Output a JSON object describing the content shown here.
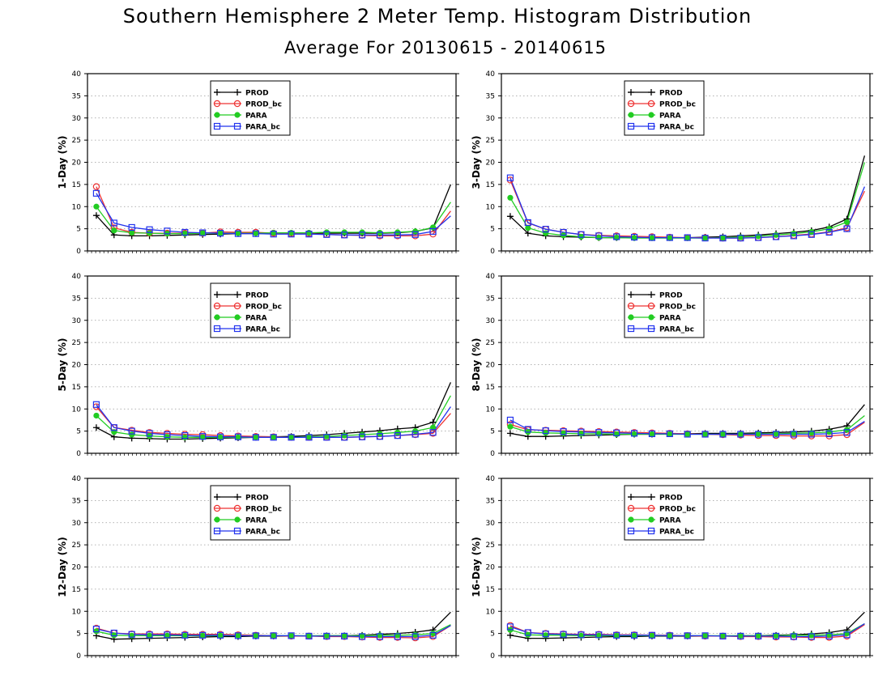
{
  "title": "Southern Hemisphere 2 Meter Temp. Histogram Distribution",
  "subtitle": "Average For 20130615 - 20140615",
  "colors": {
    "PROD": "#000000",
    "PROD_bc": "#ee3333",
    "PARA": "#22cc22",
    "PARA_bc": "#2233ee"
  },
  "chart_data": [
    {
      "type": "line",
      "ylabel": "1-Day (%)",
      "ylim": [
        0,
        40
      ],
      "yticks": [
        0,
        5,
        10,
        15,
        20,
        25,
        30,
        35,
        40
      ],
      "x": [
        1,
        2,
        3,
        4,
        5,
        6,
        7,
        8,
        9,
        10,
        11,
        12,
        13,
        14,
        15,
        16,
        17,
        18,
        19,
        20,
        21
      ],
      "grid": true,
      "legend": "top-left",
      "series": [
        {
          "name": "PROD",
          "marker": "plus",
          "values": [
            8,
            3.6,
            3.4,
            3.4,
            3.5,
            3.6,
            3.7,
            3.8,
            3.9,
            3.9,
            4.0,
            4.0,
            4.0,
            4.0,
            4.0,
            4.0,
            4.0,
            4.1,
            4.4,
            5.2,
            15
          ]
        },
        {
          "name": "PROD_bc",
          "marker": "circle",
          "values": [
            14.5,
            5.2,
            4.2,
            4.0,
            4.0,
            4.0,
            4.0,
            4.3,
            4.2,
            4.2,
            4.0,
            3.9,
            3.9,
            3.7,
            3.6,
            3.5,
            3.4,
            3.4,
            3.4,
            3.8,
            9
          ]
        },
        {
          "name": "PARA",
          "marker": "dot",
          "values": [
            10,
            4.6,
            4.1,
            4.0,
            3.9,
            3.9,
            4.0,
            4.0,
            4.0,
            4.0,
            4.1,
            4.1,
            4.1,
            4.2,
            4.2,
            4.2,
            4.1,
            4.2,
            4.4,
            5.3,
            11
          ]
        },
        {
          "name": "PARA_bc",
          "marker": "square",
          "values": [
            13,
            6.3,
            5.3,
            4.8,
            4.5,
            4.2,
            4.1,
            4.0,
            3.9,
            3.9,
            3.8,
            3.8,
            3.8,
            3.7,
            3.6,
            3.6,
            3.6,
            3.6,
            3.7,
            4.4,
            7.9
          ]
        }
      ]
    },
    {
      "type": "line",
      "ylabel": "3-Day (%)",
      "ylim": [
        0,
        40
      ],
      "yticks": [
        0,
        5,
        10,
        15,
        20,
        25,
        30,
        35,
        40
      ],
      "x": [
        1,
        2,
        3,
        4,
        5,
        6,
        7,
        8,
        9,
        10,
        11,
        12,
        13,
        14,
        15,
        16,
        17,
        18,
        19,
        20,
        21
      ],
      "grid": true,
      "legend": "top-left",
      "series": [
        {
          "name": "PROD",
          "marker": "plus",
          "values": [
            7.8,
            4.0,
            3.4,
            3.2,
            3.1,
            3.0,
            3.0,
            3.0,
            3.0,
            3.0,
            3.0,
            3.1,
            3.2,
            3.4,
            3.6,
            3.9,
            4.2,
            4.6,
            5.4,
            7.2,
            21.5
          ]
        },
        {
          "name": "PROD_bc",
          "marker": "circle",
          "values": [
            16,
            6.3,
            4.9,
            4.2,
            3.7,
            3.5,
            3.4,
            3.3,
            3.2,
            3.1,
            3.0,
            3.0,
            2.9,
            2.9,
            3.0,
            3.2,
            3.5,
            3.8,
            4.3,
            5.2,
            13.5
          ]
        },
        {
          "name": "PARA",
          "marker": "dot",
          "values": [
            12,
            5.2,
            4.0,
            3.5,
            3.2,
            3.0,
            3.0,
            2.9,
            2.9,
            2.9,
            2.9,
            2.9,
            3.0,
            3.1,
            3.3,
            3.6,
            3.9,
            4.3,
            5.0,
            6.5,
            20
          ]
        },
        {
          "name": "PARA_bc",
          "marker": "square",
          "values": [
            16.5,
            6.4,
            4.9,
            4.2,
            3.7,
            3.4,
            3.2,
            3.1,
            3.0,
            3.0,
            3.0,
            2.9,
            2.9,
            2.9,
            3.0,
            3.2,
            3.4,
            3.7,
            4.2,
            5.0,
            14.5
          ]
        }
      ]
    },
    {
      "type": "line",
      "ylabel": "5-Day (%)",
      "ylim": [
        0,
        40
      ],
      "yticks": [
        0,
        5,
        10,
        15,
        20,
        25,
        30,
        35,
        40
      ],
      "x": [
        1,
        2,
        3,
        4,
        5,
        6,
        7,
        8,
        9,
        10,
        11,
        12,
        13,
        14,
        15,
        16,
        17,
        18,
        19,
        20,
        21
      ],
      "grid": true,
      "legend": "top-left",
      "series": [
        {
          "name": "PROD",
          "marker": "plus",
          "values": [
            5.8,
            3.7,
            3.4,
            3.3,
            3.2,
            3.2,
            3.3,
            3.4,
            3.5,
            3.6,
            3.7,
            3.8,
            4.0,
            4.2,
            4.5,
            4.8,
            5.1,
            5.5,
            5.8,
            7.0,
            16
          ]
        },
        {
          "name": "PROD_bc",
          "marker": "circle",
          "values": [
            10.5,
            5.8,
            5.2,
            4.7,
            4.5,
            4.3,
            4.2,
            4.0,
            3.9,
            3.8,
            3.7,
            3.6,
            3.6,
            3.6,
            3.6,
            3.7,
            3.8,
            4.0,
            4.2,
            4.5,
            9
          ]
        },
        {
          "name": "PARA",
          "marker": "dot",
          "values": [
            8.5,
            4.8,
            4.2,
            3.9,
            3.7,
            3.6,
            3.6,
            3.6,
            3.6,
            3.6,
            3.6,
            3.6,
            3.7,
            3.8,
            4.0,
            4.2,
            4.4,
            4.7,
            5.0,
            5.8,
            13
          ]
        },
        {
          "name": "PARA_bc",
          "marker": "square",
          "values": [
            11,
            5.8,
            5.0,
            4.5,
            4.2,
            4.0,
            3.8,
            3.7,
            3.7,
            3.6,
            3.6,
            3.6,
            3.6,
            3.6,
            3.6,
            3.7,
            3.8,
            4.0,
            4.3,
            4.7,
            10.5
          ]
        }
      ]
    },
    {
      "type": "line",
      "ylabel": "8-Day (%)",
      "ylim": [
        0,
        40
      ],
      "yticks": [
        0,
        5,
        10,
        15,
        20,
        25,
        30,
        35,
        40
      ],
      "x": [
        1,
        2,
        3,
        4,
        5,
        6,
        7,
        8,
        9,
        10,
        11,
        12,
        13,
        14,
        15,
        16,
        17,
        18,
        19,
        20,
        21
      ],
      "grid": true,
      "legend": "top-left",
      "series": [
        {
          "name": "PROD",
          "marker": "plus",
          "values": [
            4.5,
            3.8,
            3.8,
            3.9,
            4.0,
            4.1,
            4.2,
            4.3,
            4.3,
            4.4,
            4.4,
            4.5,
            4.5,
            4.5,
            4.6,
            4.7,
            4.8,
            5.0,
            5.4,
            6.2,
            11
          ]
        },
        {
          "name": "PROD_bc",
          "marker": "circle",
          "values": [
            6.5,
            5.3,
            5.2,
            5.1,
            5.0,
            4.9,
            4.8,
            4.7,
            4.6,
            4.5,
            4.4,
            4.3,
            4.2,
            4.1,
            4.0,
            4.0,
            3.9,
            3.9,
            3.9,
            4.2,
            7
          ]
        },
        {
          "name": "PARA",
          "marker": "dot",
          "values": [
            6,
            4.8,
            4.6,
            4.5,
            4.4,
            4.4,
            4.3,
            4.3,
            4.3,
            4.3,
            4.3,
            4.3,
            4.3,
            4.3,
            4.4,
            4.4,
            4.5,
            4.6,
            4.8,
            5.3,
            8.5
          ]
        },
        {
          "name": "PARA_bc",
          "marker": "square",
          "values": [
            7.5,
            5.4,
            5.1,
            4.9,
            4.8,
            4.7,
            4.6,
            4.5,
            4.4,
            4.4,
            4.3,
            4.3,
            4.3,
            4.3,
            4.3,
            4.3,
            4.3,
            4.3,
            4.4,
            4.7,
            7.2
          ]
        }
      ]
    },
    {
      "type": "line",
      "ylabel": "12-Day (%)",
      "ylim": [
        0,
        40
      ],
      "yticks": [
        0,
        5,
        10,
        15,
        20,
        25,
        30,
        35,
        40
      ],
      "x": [
        1,
        2,
        3,
        4,
        5,
        6,
        7,
        8,
        9,
        10,
        11,
        12,
        13,
        14,
        15,
        16,
        17,
        18,
        19,
        20,
        21
      ],
      "grid": true,
      "legend": "top-left",
      "series": [
        {
          "name": "PROD",
          "marker": "plus",
          "values": [
            4.5,
            3.7,
            3.8,
            3.9,
            4.0,
            4.1,
            4.2,
            4.3,
            4.3,
            4.4,
            4.4,
            4.4,
            4.4,
            4.5,
            4.5,
            4.6,
            4.8,
            5.0,
            5.3,
            5.8,
            9.8
          ]
        },
        {
          "name": "PROD_bc",
          "marker": "circle",
          "values": [
            6.2,
            5.1,
            4.9,
            4.9,
            4.9,
            4.8,
            4.8,
            4.8,
            4.7,
            4.6,
            4.5,
            4.4,
            4.4,
            4.3,
            4.3,
            4.2,
            4.1,
            4.1,
            4.0,
            4.3,
            6.8
          ]
        },
        {
          "name": "PARA",
          "marker": "dot",
          "values": [
            5.5,
            4.6,
            4.5,
            4.5,
            4.5,
            4.5,
            4.5,
            4.5,
            4.5,
            4.5,
            4.5,
            4.5,
            4.5,
            4.5,
            4.5,
            4.5,
            4.6,
            4.6,
            4.7,
            5.0,
            7.0
          ]
        },
        {
          "name": "PARA_bc",
          "marker": "square",
          "values": [
            6.0,
            5.1,
            4.8,
            4.7,
            4.7,
            4.6,
            4.6,
            4.6,
            4.5,
            4.5,
            4.5,
            4.5,
            4.4,
            4.4,
            4.4,
            4.3,
            4.3,
            4.3,
            4.3,
            4.6,
            6.8
          ]
        }
      ]
    },
    {
      "type": "line",
      "ylabel": "16-Day (%)",
      "ylim": [
        0,
        40
      ],
      "yticks": [
        0,
        5,
        10,
        15,
        20,
        25,
        30,
        35,
        40
      ],
      "x": [
        1,
        2,
        3,
        4,
        5,
        6,
        7,
        8,
        9,
        10,
        11,
        12,
        13,
        14,
        15,
        16,
        17,
        18,
        19,
        20,
        21
      ],
      "grid": true,
      "legend": "top-left",
      "series": [
        {
          "name": "PROD",
          "marker": "plus",
          "values": [
            4.6,
            3.9,
            3.9,
            4.0,
            4.1,
            4.2,
            4.3,
            4.3,
            4.4,
            4.4,
            4.4,
            4.4,
            4.4,
            4.5,
            4.5,
            4.6,
            4.7,
            4.9,
            5.2,
            5.8,
            9.8
          ]
        },
        {
          "name": "PROD_bc",
          "marker": "circle",
          "values": [
            6.8,
            5.2,
            5.0,
            4.9,
            4.8,
            4.8,
            4.7,
            4.7,
            4.6,
            4.6,
            4.5,
            4.4,
            4.4,
            4.3,
            4.3,
            4.2,
            4.2,
            4.1,
            4.1,
            4.4,
            7.0
          ]
        },
        {
          "name": "PARA",
          "marker": "dot",
          "values": [
            5.8,
            4.7,
            4.6,
            4.6,
            4.5,
            4.5,
            4.5,
            4.5,
            4.5,
            4.5,
            4.5,
            4.5,
            4.5,
            4.5,
            4.5,
            4.5,
            4.6,
            4.6,
            4.7,
            5.0,
            7.2
          ]
        },
        {
          "name": "PARA_bc",
          "marker": "square",
          "values": [
            6.5,
            5.2,
            4.9,
            4.8,
            4.7,
            4.7,
            4.6,
            4.6,
            4.6,
            4.5,
            4.5,
            4.5,
            4.4,
            4.4,
            4.4,
            4.4,
            4.3,
            4.3,
            4.4,
            4.7,
            7.2
          ]
        }
      ]
    }
  ]
}
